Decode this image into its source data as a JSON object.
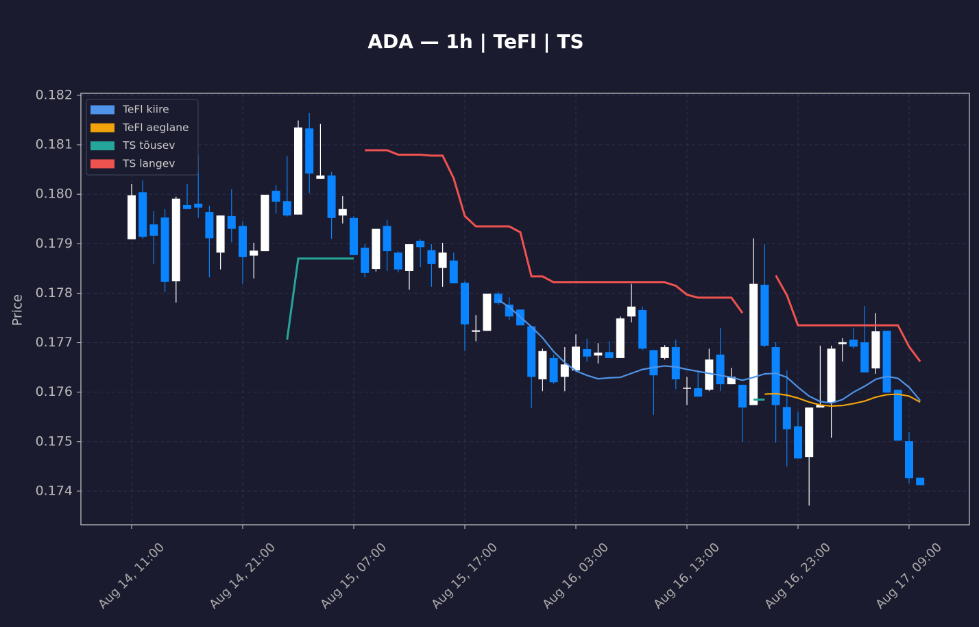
{
  "chart_data": {
    "type": "candlestick",
    "title": "ADA — 1h  |  TeFl  |  TS",
    "y_label": "Price",
    "categories": [
      "Aug 14, 11:00",
      null,
      null,
      null,
      null,
      null,
      null,
      null,
      null,
      null,
      "Aug 14, 21:00",
      null,
      null,
      null,
      null,
      null,
      null,
      null,
      null,
      null,
      "Aug 15, 07:00",
      null,
      null,
      null,
      null,
      null,
      null,
      null,
      null,
      null,
      "Aug 15, 17:00",
      null,
      null,
      null,
      null,
      null,
      null,
      null,
      null,
      null,
      "Aug 16, 03:00",
      null,
      null,
      null,
      null,
      null,
      null,
      null,
      null,
      null,
      "Aug 16, 13:00",
      null,
      null,
      null,
      null,
      null,
      null,
      null,
      null,
      null,
      "Aug 16, 23:00",
      null,
      null,
      null,
      null,
      null,
      null,
      null,
      null,
      null,
      "Aug 17, 09:00",
      null
    ],
    "open": [
      0.17909,
      0.18004,
      0.17939,
      0.17953,
      0.17824,
      0.17978,
      0.17981,
      0.17964,
      0.17882,
      0.17956,
      0.17936,
      0.17876,
      0.17885,
      0.18007,
      0.17986,
      0.17959,
      0.18133,
      0.18031,
      0.18038,
      0.17957,
      0.17952,
      0.17892,
      0.17849,
      0.17936,
      0.17882,
      0.17845,
      0.17906,
      0.17887,
      0.17851,
      0.17866,
      0.17821,
      0.17722,
      0.17724,
      0.17799,
      0.17777,
      0.17767,
      0.17733,
      0.17626,
      0.17669,
      0.17631,
      0.17644,
      0.17687,
      0.17674,
      0.17681,
      0.17669,
      0.17753,
      0.17766,
      0.17685,
      0.17669,
      0.17691,
      0.17607,
      0.17608,
      0.17605,
      0.17676,
      0.17616,
      0.17615,
      0.17574,
      0.17817,
      0.17691,
      0.1757,
      0.17531,
      0.17469,
      0.17569,
      0.17579,
      0.17697,
      0.17706,
      0.17701,
      0.17648,
      0.17724,
      0.17605,
      0.17501,
      0.17427
    ],
    "high": [
      0.18021,
      0.18028,
      0.17966,
      0.1797,
      0.17995,
      0.18021,
      0.18079,
      0.17977,
      0.17957,
      0.1801,
      0.17945,
      0.17902,
      0.17999,
      0.18018,
      0.18077,
      0.18149,
      0.18164,
      0.18142,
      0.18045,
      0.17996,
      0.17956,
      0.17899,
      0.1793,
      0.17948,
      0.17885,
      0.17899,
      0.17909,
      0.17899,
      0.17902,
      0.17882,
      0.17824,
      0.17756,
      0.17799,
      0.17803,
      0.17792,
      0.17767,
      0.17733,
      0.17688,
      0.17676,
      0.17691,
      0.17717,
      0.17708,
      0.17699,
      0.17703,
      0.17753,
      0.17819,
      0.17773,
      0.17685,
      0.17695,
      0.17706,
      0.17631,
      0.17644,
      0.17688,
      0.1773,
      0.17649,
      0.17615,
      0.17911,
      0.17899,
      0.17701,
      0.17644,
      0.1756,
      0.17569,
      0.17694,
      0.17694,
      0.17709,
      0.1773,
      0.17774,
      0.1776,
      0.17724,
      0.17605,
      0.17519,
      0.17427
    ],
    "low": [
      0.17909,
      0.1791,
      0.17859,
      0.17802,
      0.17781,
      0.1797,
      0.17952,
      0.17832,
      0.17848,
      0.17903,
      0.17819,
      0.1783,
      0.17885,
      0.17961,
      0.17955,
      0.17959,
      0.18002,
      0.18031,
      0.1791,
      0.17941,
      0.17877,
      0.17832,
      0.17844,
      0.17845,
      0.17842,
      0.17807,
      0.17853,
      0.17813,
      0.17813,
      0.1782,
      0.17683,
      0.17703,
      0.17724,
      0.17776,
      0.17746,
      0.17735,
      0.17568,
      0.17602,
      0.17617,
      0.17602,
      0.17644,
      0.17662,
      0.17658,
      0.17669,
      0.17669,
      0.17741,
      0.17685,
      0.17554,
      0.17666,
      0.17606,
      0.17574,
      0.17591,
      0.17602,
      0.17602,
      0.17616,
      0.175,
      0.17574,
      0.17691,
      0.17498,
      0.1745,
      0.17466,
      0.17371,
      0.17569,
      0.17508,
      0.17662,
      0.17688,
      0.1764,
      0.17637,
      0.17599,
      0.17502,
      0.17416,
      0.17412
    ],
    "close": [
      0.17998,
      0.17914,
      0.17916,
      0.17823,
      0.17991,
      0.1797,
      0.17973,
      0.17911,
      0.17957,
      0.1793,
      0.17873,
      0.17886,
      0.17999,
      0.17985,
      0.17957,
      0.18135,
      0.18042,
      0.18038,
      0.17952,
      0.1797,
      0.17877,
      0.17841,
      0.1793,
      0.17885,
      0.17848,
      0.17899,
      0.17893,
      0.17859,
      0.17882,
      0.1782,
      0.17737,
      0.17725,
      0.17799,
      0.1778,
      0.17753,
      0.17735,
      0.17631,
      0.17683,
      0.1762,
      0.17656,
      0.17692,
      0.17672,
      0.1768,
      0.17669,
      0.17749,
      0.17773,
      0.17688,
      0.17634,
      0.17691,
      0.17626,
      0.17609,
      0.17591,
      0.17666,
      0.17616,
      0.17631,
      0.17569,
      0.17819,
      0.17694,
      0.17574,
      0.17525,
      0.17466,
      0.17569,
      0.17574,
      0.17688,
      0.17701,
      0.17692,
      0.1764,
      0.17723,
      0.17599,
      0.17502,
      0.17426,
      0.17412
    ],
    "up_color": "#ffffff",
    "down_color": "#0a84ff",
    "series": [
      {
        "name": "TeFl kiire",
        "color": "#4f94e8",
        "values": [
          null,
          null,
          null,
          null,
          null,
          null,
          null,
          null,
          null,
          null,
          null,
          null,
          null,
          null,
          null,
          null,
          null,
          null,
          null,
          null,
          null,
          null,
          null,
          null,
          null,
          null,
          null,
          null,
          null,
          null,
          null,
          null,
          null,
          0.17787,
          0.17772,
          0.17752,
          0.17732,
          0.1771,
          0.17682,
          0.1766,
          0.17643,
          0.17634,
          0.17627,
          0.17629,
          0.1763,
          0.17638,
          0.17646,
          0.1765,
          0.17653,
          0.17651,
          0.17646,
          0.17642,
          0.17638,
          0.17634,
          0.1763,
          0.17624,
          0.1763,
          0.17637,
          0.17638,
          0.1763,
          0.1761,
          0.17592,
          0.17581,
          0.17578,
          0.17585,
          0.176,
          0.17612,
          0.17626,
          0.17632,
          0.17628,
          0.1761,
          0.17583
        ]
      },
      {
        "name": "TeFl aeglane",
        "color": "#f0a30a",
        "values": [
          null,
          null,
          null,
          null,
          null,
          null,
          null,
          null,
          null,
          null,
          null,
          null,
          null,
          null,
          null,
          null,
          null,
          null,
          null,
          null,
          null,
          null,
          null,
          null,
          null,
          null,
          null,
          null,
          null,
          null,
          null,
          null,
          null,
          null,
          null,
          null,
          null,
          null,
          null,
          null,
          null,
          null,
          null,
          null,
          null,
          null,
          null,
          null,
          null,
          null,
          null,
          null,
          null,
          null,
          null,
          null,
          null,
          0.17596,
          0.17597,
          0.17594,
          0.17588,
          0.1758,
          0.17574,
          0.17572,
          0.17573,
          0.17577,
          0.17582,
          0.1759,
          0.17595,
          0.17596,
          0.17592,
          0.1758
        ]
      },
      {
        "name": "TS tõusev",
        "color": "#26a69a",
        "values": [
          null,
          null,
          null,
          null,
          null,
          null,
          null,
          null,
          null,
          null,
          null,
          null,
          null,
          null,
          0.17706,
          0.1787,
          0.1787,
          0.1787,
          0.1787,
          0.1787,
          0.1787,
          null,
          null,
          null,
          null,
          null,
          null,
          null,
          null,
          null,
          null,
          null,
          null,
          null,
          null,
          null,
          null,
          null,
          null,
          null,
          null,
          null,
          null,
          null,
          null,
          null,
          null,
          null,
          null,
          null,
          null,
          null,
          null,
          null,
          null,
          null,
          0.17585,
          0.17585,
          null,
          null,
          null,
          null,
          null,
          null,
          null,
          null,
          null,
          null,
          null,
          null,
          null,
          null
        ]
      },
      {
        "name": "TS langev",
        "color": "#ef5350",
        "values": [
          null,
          null,
          null,
          null,
          null,
          null,
          null,
          null,
          null,
          null,
          null,
          null,
          null,
          null,
          null,
          null,
          null,
          null,
          null,
          null,
          null,
          0.18089,
          0.18089,
          0.18089,
          0.1808,
          0.1808,
          0.1808,
          0.18078,
          0.18078,
          0.18032,
          0.17956,
          0.17935,
          0.17935,
          0.17935,
          0.17935,
          0.17923,
          0.17834,
          0.17834,
          0.17822,
          0.17822,
          0.17822,
          0.17822,
          0.17822,
          0.17822,
          0.17822,
          0.17822,
          0.17822,
          0.17822,
          0.17822,
          0.17815,
          0.17797,
          0.17791,
          0.17791,
          0.17791,
          0.17791,
          0.1776,
          null,
          null,
          0.17836,
          0.17796,
          0.17735,
          0.17735,
          0.17735,
          0.17735,
          0.17735,
          0.17735,
          0.17735,
          0.17735,
          0.17735,
          0.17735,
          0.17692,
          0.17662
        ]
      }
    ],
    "ylim": [
      0.17332,
      0.18204
    ],
    "yticks": [
      0.174,
      0.175,
      0.176,
      0.177,
      0.178,
      0.179,
      {
        "value": 0.18,
        "label": "0.180"
      },
      0.181,
      0.182
    ],
    "grid": true,
    "legend": "upper left"
  }
}
